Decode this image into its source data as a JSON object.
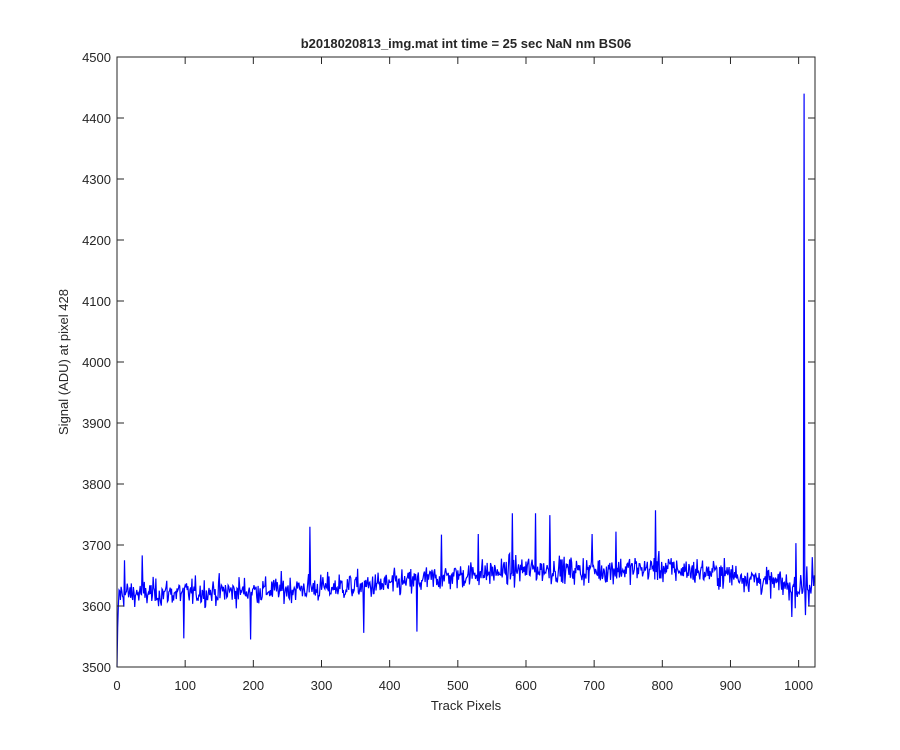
{
  "colors": {
    "line": "#0000ff",
    "axis": "#262626",
    "background": "#ffffff"
  },
  "chart_data": {
    "type": "line",
    "title": "b2018020813_img.mat int time = 25 sec  NaN nm BS06",
    "xlabel": "Track Pixels",
    "ylabel": "Signal (ADU) at pixel 428",
    "xlim": [
      0,
      1024
    ],
    "ylim": [
      3500,
      4500
    ],
    "xticks": [
      0,
      100,
      200,
      300,
      400,
      500,
      600,
      700,
      800,
      900,
      1000
    ],
    "yticks": [
      3500,
      3600,
      3700,
      3800,
      3900,
      4000,
      4100,
      4200,
      4300,
      4400,
      4500
    ],
    "grid": false,
    "legend": "none",
    "series": [
      {
        "n_points": 1024,
        "trend": [
          [
            0,
            3620
          ],
          [
            100,
            3622
          ],
          [
            200,
            3625
          ],
          [
            300,
            3630
          ],
          [
            400,
            3635
          ],
          [
            500,
            3650
          ],
          [
            600,
            3660
          ],
          [
            700,
            3658
          ],
          [
            800,
            3662
          ],
          [
            900,
            3652
          ],
          [
            1000,
            3630
          ],
          [
            1024,
            3635
          ]
        ],
        "noise_amplitude": 20,
        "notable_points": [
          [
            0,
            3500
          ],
          [
            1,
            3565
          ],
          [
            2,
            3600
          ],
          [
            11,
            3675
          ],
          [
            37,
            3683
          ],
          [
            98,
            3547
          ],
          [
            196,
            3545
          ],
          [
            283,
            3730
          ],
          [
            362,
            3556
          ],
          [
            440,
            3558
          ],
          [
            476,
            3717
          ],
          [
            530,
            3718
          ],
          [
            580,
            3752
          ],
          [
            614,
            3752
          ],
          [
            635,
            3749
          ],
          [
            697,
            3718
          ],
          [
            732,
            3722
          ],
          [
            790,
            3757
          ],
          [
            990,
            3582
          ],
          [
            996,
            3703
          ],
          [
            1005,
            3620
          ],
          [
            1008,
            4440
          ],
          [
            1010,
            3585
          ],
          [
            1012,
            3665
          ],
          [
            1015,
            3600
          ],
          [
            1020,
            3680
          ]
        ]
      }
    ]
  }
}
